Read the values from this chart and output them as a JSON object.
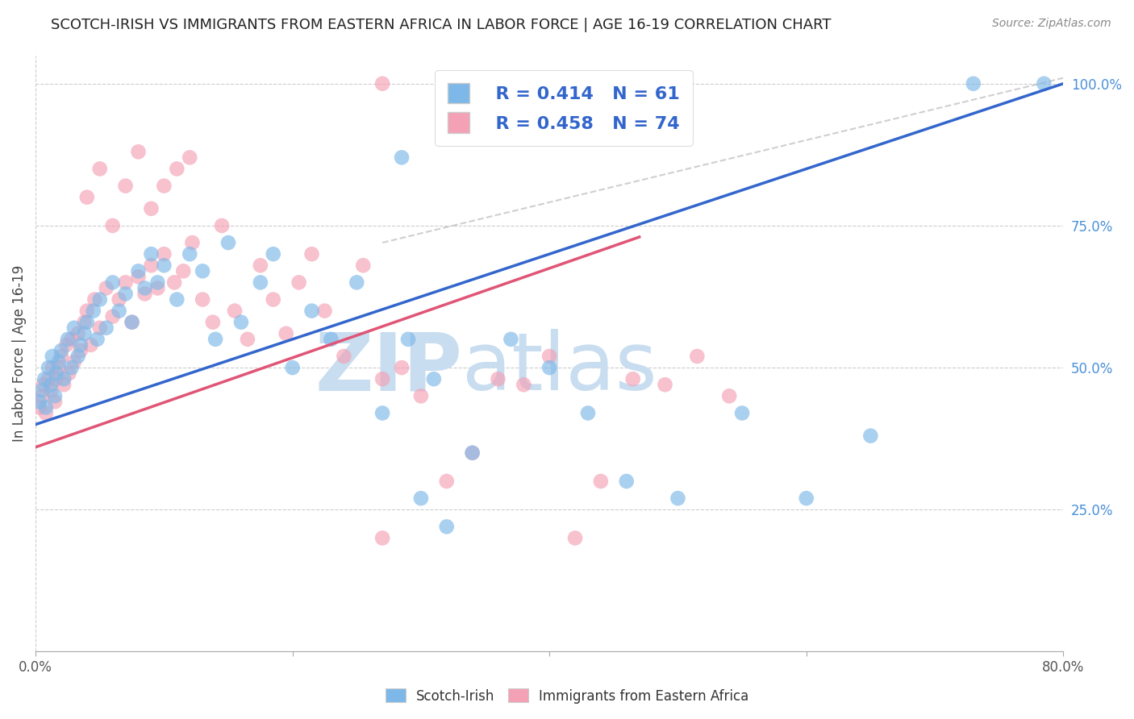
{
  "title": "SCOTCH-IRISH VS IMMIGRANTS FROM EASTERN AFRICA IN LABOR FORCE | AGE 16-19 CORRELATION CHART",
  "source": "Source: ZipAtlas.com",
  "ylabel": "In Labor Force | Age 16-19",
  "xmin": 0.0,
  "xmax": 0.8,
  "ymin": 0.0,
  "ymax": 1.05,
  "x_ticks": [
    0.0,
    0.2,
    0.4,
    0.6,
    0.8
  ],
  "x_tick_labels": [
    "0.0%",
    "",
    "",
    "",
    "80.0%"
  ],
  "y_tick_labels_right": [
    "",
    "25.0%",
    "50.0%",
    "75.0%",
    "100.0%"
  ],
  "y_tick_positions_right": [
    0.0,
    0.25,
    0.5,
    0.75,
    1.0
  ],
  "legend_r_blue": "R = 0.414",
  "legend_n_blue": "N = 61",
  "legend_r_pink": "R = 0.458",
  "legend_n_pink": "N = 74",
  "blue_color": "#7db8e8",
  "pink_color": "#f4a0b5",
  "blue_line_color": "#3366cc",
  "pink_line_color": "#e05575",
  "diag_color": "#bbbbbb",
  "watermark_zip_color": "#c8ddf0",
  "watermark_atlas_color": "#c8ddf0",
  "grid_color": "#cccccc",
  "background_color": "#ffffff",
  "blue_scatter_x": [
    0.003,
    0.005,
    0.007,
    0.008,
    0.01,
    0.012,
    0.013,
    0.015,
    0.016,
    0.018,
    0.02,
    0.022,
    0.025,
    0.028,
    0.03,
    0.033,
    0.035,
    0.038,
    0.04,
    0.045,
    0.048,
    0.05,
    0.055,
    0.06,
    0.065,
    0.07,
    0.075,
    0.08,
    0.085,
    0.09,
    0.095,
    0.1,
    0.11,
    0.12,
    0.13,
    0.14,
    0.15,
    0.16,
    0.175,
    0.185,
    0.2,
    0.215,
    0.23,
    0.25,
    0.27,
    0.29,
    0.31,
    0.34,
    0.37,
    0.4,
    0.43,
    0.46,
    0.5,
    0.55,
    0.6,
    0.65,
    0.73,
    0.785,
    0.285,
    0.3,
    0.32
  ],
  "blue_scatter_y": [
    0.44,
    0.46,
    0.48,
    0.43,
    0.5,
    0.47,
    0.52,
    0.45,
    0.49,
    0.51,
    0.53,
    0.48,
    0.55,
    0.5,
    0.57,
    0.52,
    0.54,
    0.56,
    0.58,
    0.6,
    0.55,
    0.62,
    0.57,
    0.65,
    0.6,
    0.63,
    0.58,
    0.67,
    0.64,
    0.7,
    0.65,
    0.68,
    0.62,
    0.7,
    0.67,
    0.55,
    0.72,
    0.58,
    0.65,
    0.7,
    0.5,
    0.6,
    0.55,
    0.65,
    0.42,
    0.55,
    0.48,
    0.35,
    0.55,
    0.5,
    0.42,
    0.3,
    0.27,
    0.42,
    0.27,
    0.38,
    1.0,
    1.0,
    0.87,
    0.27,
    0.22
  ],
  "pink_scatter_x": [
    0.003,
    0.005,
    0.006,
    0.008,
    0.01,
    0.012,
    0.013,
    0.015,
    0.016,
    0.018,
    0.02,
    0.022,
    0.024,
    0.026,
    0.028,
    0.03,
    0.033,
    0.035,
    0.038,
    0.04,
    0.043,
    0.046,
    0.05,
    0.055,
    0.06,
    0.065,
    0.07,
    0.075,
    0.08,
    0.085,
    0.09,
    0.095,
    0.1,
    0.108,
    0.115,
    0.122,
    0.13,
    0.138,
    0.145,
    0.155,
    0.165,
    0.175,
    0.185,
    0.195,
    0.205,
    0.215,
    0.225,
    0.24,
    0.255,
    0.27,
    0.285,
    0.3,
    0.32,
    0.34,
    0.36,
    0.38,
    0.4,
    0.42,
    0.44,
    0.465,
    0.49,
    0.515,
    0.54,
    0.04,
    0.05,
    0.06,
    0.07,
    0.08,
    0.09,
    0.1,
    0.11,
    0.12,
    0.27,
    0.27
  ],
  "pink_scatter_y": [
    0.43,
    0.45,
    0.47,
    0.42,
    0.48,
    0.46,
    0.5,
    0.44,
    0.48,
    0.5,
    0.52,
    0.47,
    0.54,
    0.49,
    0.55,
    0.51,
    0.56,
    0.53,
    0.58,
    0.6,
    0.54,
    0.62,
    0.57,
    0.64,
    0.59,
    0.62,
    0.65,
    0.58,
    0.66,
    0.63,
    0.68,
    0.64,
    0.7,
    0.65,
    0.67,
    0.72,
    0.62,
    0.58,
    0.75,
    0.6,
    0.55,
    0.68,
    0.62,
    0.56,
    0.65,
    0.7,
    0.6,
    0.52,
    0.68,
    0.48,
    0.5,
    0.45,
    0.3,
    0.35,
    0.48,
    0.47,
    0.52,
    0.2,
    0.3,
    0.48,
    0.47,
    0.52,
    0.45,
    0.8,
    0.85,
    0.75,
    0.82,
    0.88,
    0.78,
    0.82,
    0.85,
    0.87,
    1.0,
    0.2
  ],
  "blue_line_x": [
    0.0,
    0.8
  ],
  "blue_line_y": [
    0.4,
    1.0
  ],
  "pink_line_x": [
    0.0,
    0.47
  ],
  "pink_line_y": [
    0.36,
    0.73
  ],
  "diag_line_x": [
    0.27,
    0.8
  ],
  "diag_line_y": [
    0.72,
    1.01
  ]
}
